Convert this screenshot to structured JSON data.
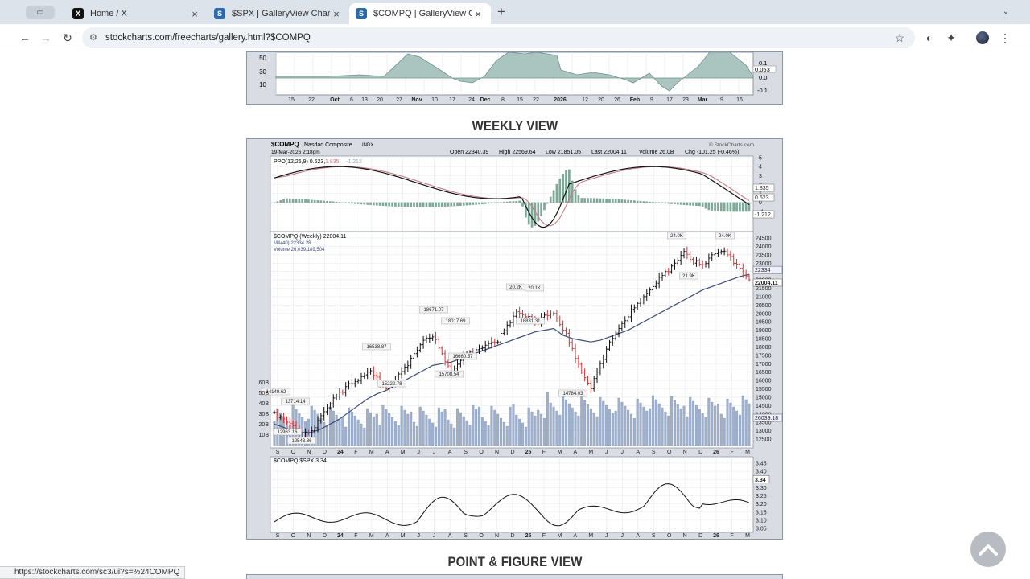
{
  "browser": {
    "tabs": [
      {
        "title": "Home / X",
        "icon": "x-logo-icon"
      },
      {
        "title": "$SPX | GalleryView Charts | S",
        "icon": "stockcharts-icon"
      },
      {
        "title": "$COMPQ | GalleryView Chart",
        "icon": "stockcharts-icon"
      }
    ],
    "url": "stockcharts.com/freecharts/gallery.html?$COMPQ",
    "status_url": "https://stockcharts.com/sc3/ui?s=%24COMPQ"
  },
  "sections": {
    "weekly_title": "WEEKLY VIEW",
    "pf_title": "POINT & FIGURE VIEW"
  },
  "daily_chart": {
    "y_labels": [
      "50",
      "30",
      "10"
    ],
    "right_labels": [
      "0.1",
      "0.053",
      "0.0",
      "-0.1"
    ],
    "x_labels": [
      "15",
      "22",
      "Oct",
      "6",
      "13",
      "20",
      "27",
      "Nov",
      "10",
      "17",
      "24",
      "Dec",
      "8",
      "15",
      "22",
      "2026",
      "12",
      "20",
      "26",
      "Feb",
      "9",
      "17",
      "23",
      "Mar",
      "9",
      "16"
    ]
  },
  "weekly_chart": {
    "symbol": "$COMPQ",
    "name": "Nasdaq Composite",
    "exchange": "INDX",
    "date": "19-Mar-2026 2:18pm",
    "watermark": "© StockCharts.com",
    "quote": {
      "open": "Open 22340.39",
      "high": "High 22569.64",
      "low": "Low 21851.05",
      "last": "Last 22004.11",
      "volume": "Volume 26.0B",
      "chg": "Chg -101.25 (-0.46%)"
    },
    "ppo": {
      "label": "PPO(12,26,9) 0.623,",
      "v2": "1.835",
      "v3": "-1.212",
      "right_ticks": [
        "5",
        "4",
        "3",
        "2",
        "1",
        "0",
        "-1"
      ],
      "right_tags": [
        "1.835",
        "0.623",
        "-1.212"
      ]
    },
    "price_legend": [
      "$COMPQ (Weekly) 22004.11",
      "MA(40) 22334.28",
      "Volume 26,039,189,504"
    ],
    "price_ticks": [
      "24500",
      "24000",
      "23500",
      "23000",
      "22500",
      "22000",
      "21500",
      "21000",
      "20500",
      "20000",
      "19500",
      "19000",
      "18500",
      "18000",
      "17500",
      "17000",
      "16500",
      "16000",
      "15500",
      "15000",
      "14500",
      "14000",
      "13500",
      "13000",
      "12500"
    ],
    "price_tags": [
      "22334",
      "22004.11",
      "26039.18"
    ],
    "volume_ticks": [
      "60B",
      "50B",
      "40B",
      "30B",
      "20B",
      "10B"
    ],
    "annotations": [
      "24.0K",
      "24.0K",
      "21.9K",
      "20.2K",
      "20.1K",
      "18671.07",
      "18017.69",
      "18831.31",
      "16538.87",
      "16660.57",
      "15222.78",
      "15708.54",
      "14784.03",
      "13714.14",
      "14149.62",
      "12963.16",
      "12543.86"
    ],
    "x_labels": [
      "S",
      "O",
      "N",
      "D",
      "24",
      "F",
      "M",
      "A",
      "M",
      "J",
      "J",
      "A",
      "S",
      "O",
      "N",
      "D",
      "25",
      "F",
      "M",
      "A",
      "M",
      "J",
      "J",
      "A",
      "S",
      "O",
      "N",
      "D",
      "26",
      "F",
      "M"
    ],
    "ratio": {
      "label": "$COMPQ:$SPX 3.34",
      "right_ticks": [
        "3.45",
        "3.40",
        "3.35",
        "3.30",
        "3.25",
        "3.20",
        "3.15",
        "3.10",
        "3.05"
      ],
      "right_tag": "3.34"
    }
  },
  "chart_data": [
    {
      "type": "line",
      "title": "$COMPQ Nasdaq Composite INDX (Weekly)",
      "series": [
        {
          "name": "$COMPQ (Weekly)",
          "values": [
            14100,
            13700,
            13300,
            12600,
            13000,
            13900,
            14600,
            15300,
            15800,
            16000,
            16500,
            16200,
            15500,
            16000,
            16800,
            17600,
            18400,
            18600,
            17600,
            16500,
            17200,
            17700,
            17900,
            18200,
            18300,
            19300,
            20100,
            19800,
            19500,
            19900,
            20000,
            19000,
            17900,
            16500,
            15500,
            17000,
            18300,
            19100,
            19800,
            20600,
            21200,
            21800,
            22500,
            23000,
            23700,
            23000,
            22900,
            23500,
            23700,
            23400,
            22700,
            22004
          ]
        },
        {
          "name": "MA(40)",
          "values": [
            13400,
            13200,
            13000,
            12900,
            12900,
            13100,
            13400,
            13700,
            14100,
            14500,
            14900,
            15200,
            15400,
            15700,
            16000,
            16300,
            16600,
            16900,
            17000,
            17100,
            17300,
            17500,
            17700,
            17900,
            18100,
            18300,
            18500,
            18700,
            18900,
            19000,
            19100,
            18700,
            18500,
            18400,
            18300,
            18400,
            18600,
            18800,
            19000,
            19300,
            19600,
            19900,
            20200,
            20500,
            20800,
            21100,
            21400,
            21600,
            21800,
            22000,
            22200,
            22334
          ]
        }
      ],
      "ylim": [
        12500,
        24500
      ]
    }
  ]
}
